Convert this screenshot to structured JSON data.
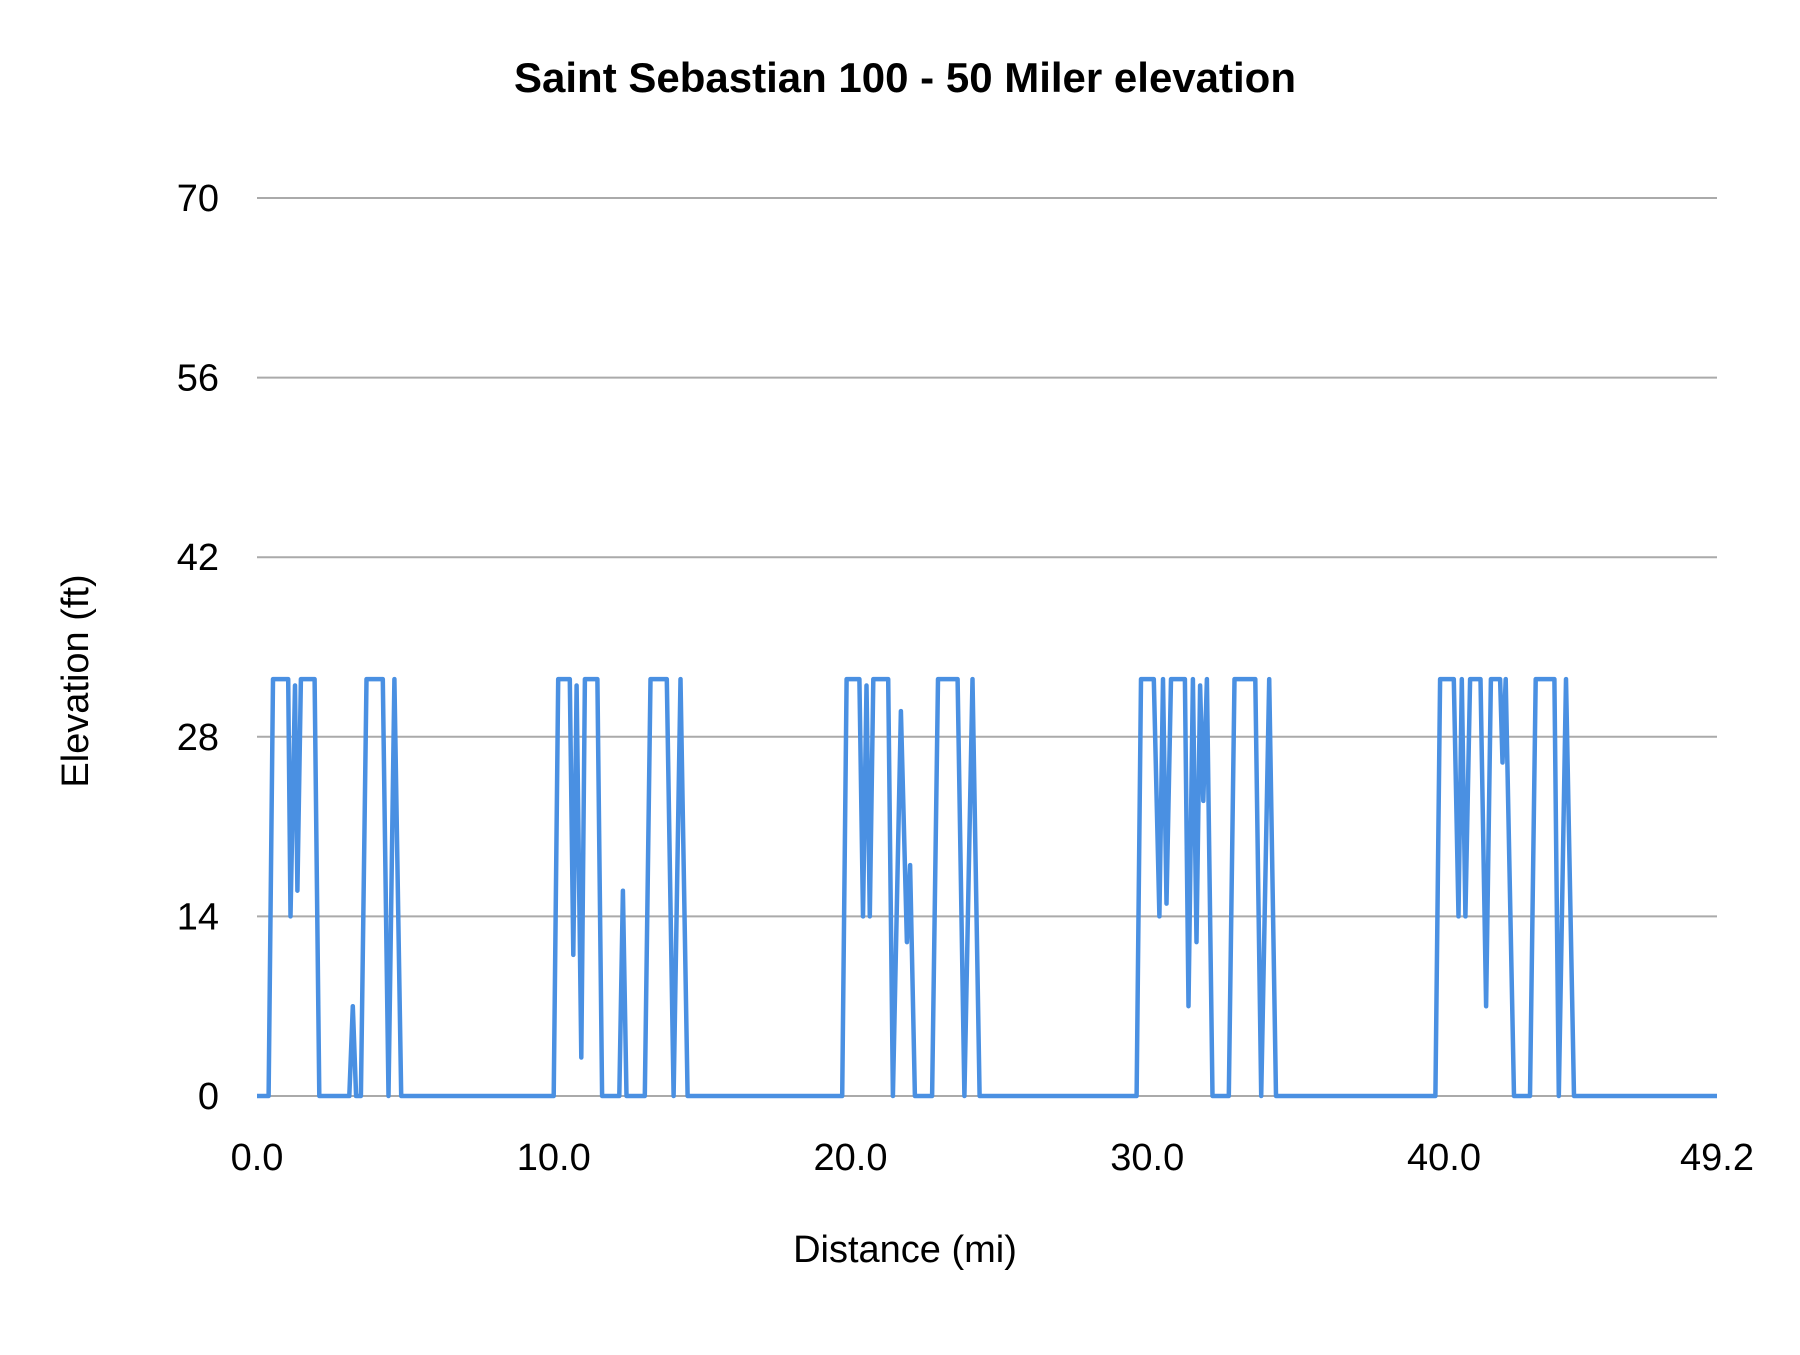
{
  "chart_data": {
    "type": "line",
    "title": "Saint Sebastian 100 - 50 Miler elevation",
    "xlabel": "Distance (mi)",
    "ylabel": "Elevation (ft)",
    "xlim": [
      0,
      49.2
    ],
    "ylim": [
      0,
      70
    ],
    "xticks": [
      "0.0",
      "10.0",
      "20.0",
      "30.0",
      "40.0",
      "49.2"
    ],
    "xtick_values": [
      0,
      10,
      20,
      30,
      40,
      49.2
    ],
    "yticks": [
      "0",
      "14",
      "28",
      "42",
      "56",
      "70"
    ],
    "ytick_values": [
      0,
      14,
      28,
      42,
      56,
      70
    ],
    "grid": "horizontal",
    "legend": "none",
    "color": "#4a90e2",
    "series": [
      {
        "name": "Elevation",
        "x": [
          0,
          0.39,
          0.54,
          1.05,
          1.13,
          1.28,
          1.36,
          1.48,
          1.94,
          2.1,
          3.11,
          3.23,
          3.34,
          3.5,
          3.69,
          4.24,
          4.43,
          4.63,
          4.86,
          10.0,
          10.15,
          10.54,
          10.66,
          10.77,
          10.93,
          11.05,
          11.47,
          11.63,
          12.21,
          12.33,
          12.45,
          13.07,
          13.26,
          13.81,
          14.04,
          14.27,
          14.51,
          19.72,
          19.87,
          20.3,
          20.42,
          20.54,
          20.65,
          20.77,
          21.27,
          21.43,
          21.7,
          21.9,
          22.01,
          22.17,
          22.75,
          22.95,
          23.61,
          23.84,
          24.11,
          24.35,
          29.64,
          29.79,
          30.22,
          30.41,
          30.53,
          30.65,
          30.8,
          31.27,
          31.39,
          31.54,
          31.66,
          31.78,
          31.89,
          32.01,
          32.2,
          32.75,
          32.94,
          33.64,
          33.84,
          34.11,
          34.34,
          39.71,
          39.87,
          40.33,
          40.49,
          40.6,
          40.72,
          40.88,
          41.23,
          41.42,
          41.58,
          41.89,
          41.97,
          42.08,
          42.36,
          42.9,
          43.09,
          43.72,
          43.87,
          44.11,
          44.38,
          49.2
        ],
        "y": [
          0,
          0,
          32.5,
          32.5,
          14,
          32,
          16,
          32.5,
          32.5,
          0,
          0,
          7,
          0,
          0,
          32.5,
          32.5,
          0,
          32.5,
          0,
          0,
          32.5,
          32.5,
          11,
          32,
          3,
          32.5,
          32.5,
          0,
          0,
          16,
          0,
          0,
          32.5,
          32.5,
          0,
          32.5,
          0,
          0,
          32.5,
          32.5,
          14,
          32,
          14,
          32.5,
          32.5,
          0,
          30,
          12,
          18,
          0,
          0,
          32.5,
          32.5,
          0,
          32.5,
          0,
          0,
          32.5,
          32.5,
          14,
          32.5,
          15,
          32.5,
          32.5,
          7,
          32.5,
          12,
          32,
          23,
          32.5,
          0,
          0,
          32.5,
          32.5,
          0,
          32.5,
          0,
          0,
          32.5,
          32.5,
          14,
          32.5,
          14,
          32.5,
          32.5,
          7,
          32.5,
          32.5,
          26,
          32.5,
          0,
          0,
          32.5,
          32.5,
          0,
          32.5,
          0,
          0
        ]
      }
    ]
  }
}
